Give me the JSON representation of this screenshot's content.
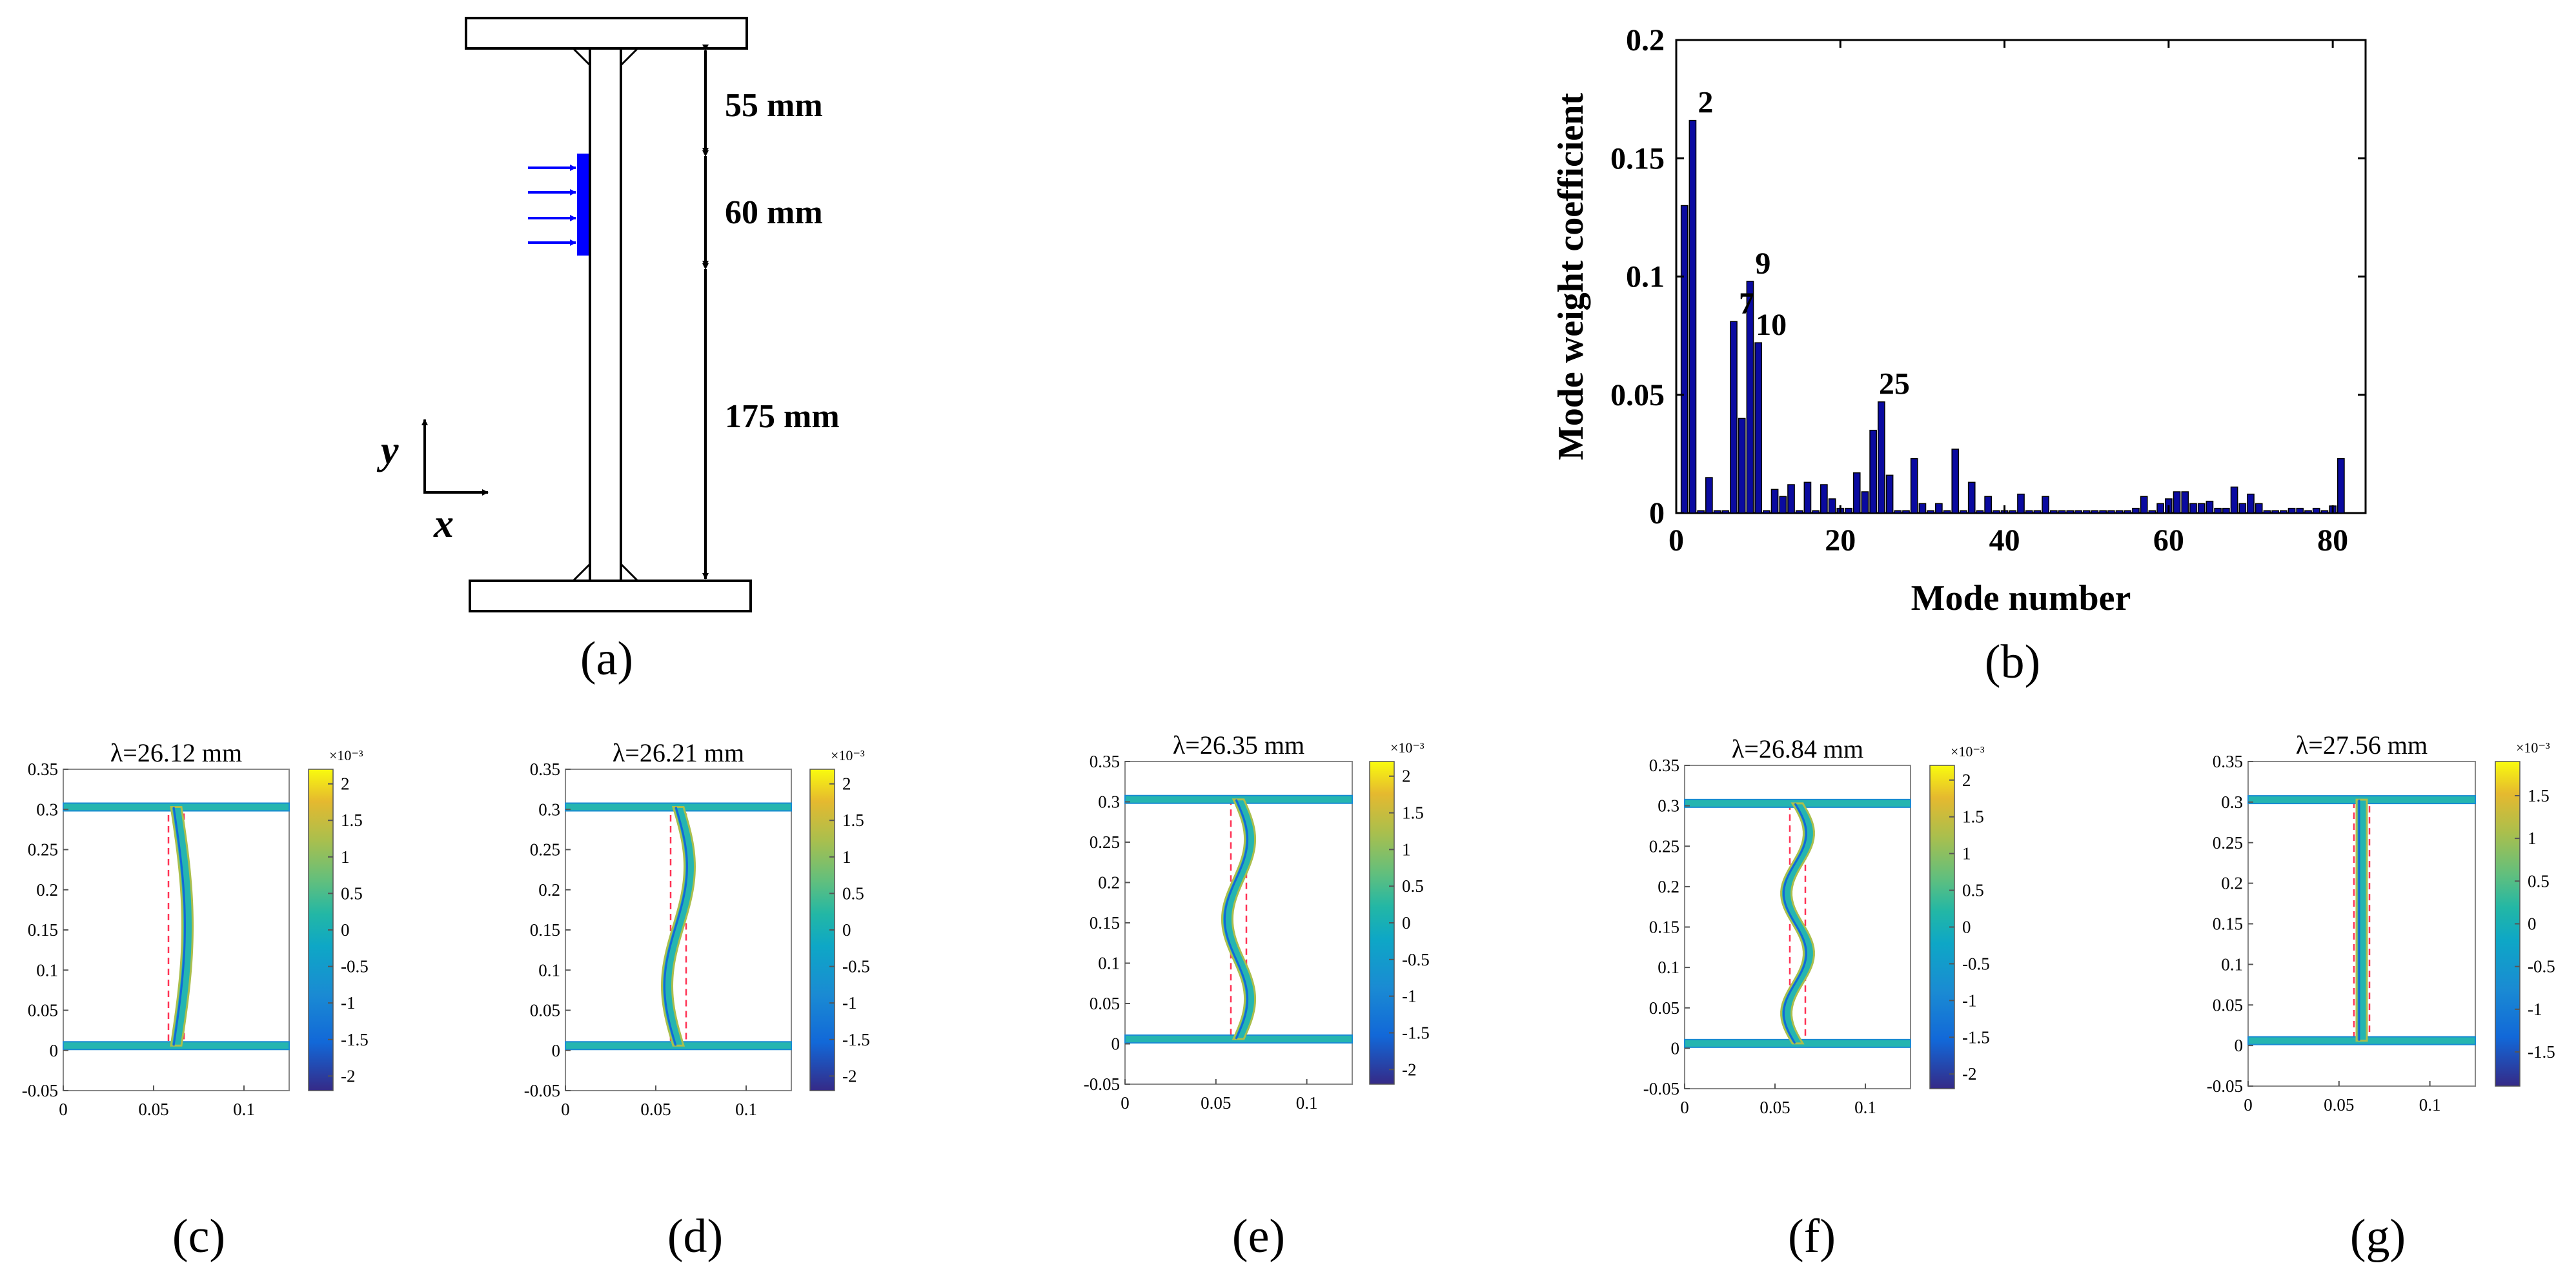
{
  "panel_labels": {
    "a": "(a)",
    "b": "(b)",
    "c": "(c)",
    "d": "(d)",
    "e": "(e)",
    "f": "(f)",
    "g": "(g)"
  },
  "schematic": {
    "dims": {
      "d1": "55 mm",
      "d2": "60 mm",
      "d3": "175 mm"
    },
    "axes": {
      "y": "y",
      "x": "x"
    },
    "load_color": "#0000ff"
  },
  "chart_data": [
    {
      "id": "b",
      "type": "bar",
      "xlabel": "Mode number",
      "ylabel": "Mode weight coefficient",
      "xlim": [
        0,
        84
      ],
      "ylim": [
        0,
        0.2
      ],
      "xticks": [
        0,
        20,
        40,
        60,
        80
      ],
      "yticks": [
        0,
        0.05,
        0.1,
        0.15,
        0.2
      ],
      "ytick_labels": [
        "0",
        "0.05",
        "0.1",
        "0.15",
        "0.2"
      ],
      "bar_color": "#0a0aa0",
      "x": [
        1,
        2,
        3,
        4,
        5,
        6,
        7,
        8,
        9,
        10,
        11,
        12,
        13,
        14,
        15,
        16,
        17,
        18,
        19,
        20,
        21,
        22,
        23,
        24,
        25,
        26,
        27,
        28,
        29,
        30,
        31,
        32,
        33,
        34,
        35,
        36,
        37,
        38,
        39,
        40,
        41,
        42,
        43,
        44,
        45,
        46,
        47,
        48,
        49,
        50,
        51,
        52,
        53,
        54,
        55,
        56,
        57,
        58,
        59,
        60,
        61,
        62,
        63,
        64,
        65,
        66,
        67,
        68,
        69,
        70,
        71,
        72,
        73,
        74,
        75,
        76,
        77,
        78,
        79,
        80,
        81
      ],
      "values": [
        0.13,
        0.166,
        0.001,
        0.015,
        0.001,
        0.001,
        0.081,
        0.04,
        0.098,
        0.072,
        0.001,
        0.01,
        0.007,
        0.012,
        0.001,
        0.013,
        0.001,
        0.012,
        0.006,
        0.002,
        0.002,
        0.017,
        0.009,
        0.035,
        0.047,
        0.016,
        0.001,
        0.001,
        0.023,
        0.004,
        0.001,
        0.004,
        0.001,
        0.027,
        0.001,
        0.013,
        0.001,
        0.007,
        0.001,
        0.001,
        0.001,
        0.008,
        0.001,
        0.001,
        0.007,
        0.001,
        0.001,
        0.001,
        0.001,
        0.001,
        0.001,
        0.001,
        0.001,
        0.001,
        0.001,
        0.002,
        0.007,
        0.001,
        0.004,
        0.006,
        0.009,
        0.009,
        0.004,
        0.004,
        0.005,
        0.002,
        0.002,
        0.011,
        0.004,
        0.008,
        0.004,
        0.001,
        0.001,
        0.001,
        0.002,
        0.002,
        0.001,
        0.002,
        0.001,
        0.003,
        0.023
      ],
      "annotations": [
        {
          "text": "2",
          "x": 2,
          "y": 0.166
        },
        {
          "text": "7",
          "x": 7,
          "y": 0.081
        },
        {
          "text": "9",
          "x": 9,
          "y": 0.098
        },
        {
          "text": "10",
          "x": 10,
          "y": 0.072
        },
        {
          "text": "25",
          "x": 25,
          "y": 0.047
        }
      ]
    },
    {
      "id": "c",
      "type": "heatmap",
      "title": "λ=26.12 mm",
      "waves": 0.5,
      "xlim": [
        0,
        0.125
      ],
      "ylim": [
        -0.05,
        0.35
      ],
      "xticks": [
        0,
        0.05,
        0.1
      ],
      "xtick_labels": [
        "0",
        "0.05",
        "0.1"
      ],
      "yticks": [
        -0.05,
        0,
        0.05,
        0.1,
        0.15,
        0.2,
        0.25,
        0.3,
        0.35
      ],
      "ytick_labels": [
        "-0.05",
        "0",
        "0.05",
        "0.1",
        "0.15",
        "0.2",
        "0.25",
        "0.3",
        "0.35"
      ],
      "colorbar": {
        "exponent": "×10⁻³",
        "min": -2.2,
        "max": 2.2,
        "ticks": [
          2,
          1.5,
          1,
          0.5,
          0,
          -0.5,
          -1,
          -1.5,
          -2
        ],
        "tick_labels": [
          "2",
          "1.5",
          "1",
          "0.5",
          "0",
          "-0.5",
          "-1",
          "-1.5",
          "-2"
        ]
      }
    },
    {
      "id": "d",
      "type": "heatmap",
      "title": "λ=26.21 mm",
      "waves": 1,
      "xlim": [
        0,
        0.125
      ],
      "ylim": [
        -0.05,
        0.35
      ],
      "xticks": [
        0,
        0.05,
        0.1
      ],
      "xtick_labels": [
        "0",
        "0.05",
        "0.1"
      ],
      "yticks": [
        -0.05,
        0,
        0.05,
        0.1,
        0.15,
        0.2,
        0.25,
        0.3,
        0.35
      ],
      "ytick_labels": [
        "-0.05",
        "0",
        "0.05",
        "0.1",
        "0.15",
        "0.2",
        "0.25",
        "0.3",
        "0.35"
      ],
      "colorbar": {
        "exponent": "×10⁻³",
        "min": -2.2,
        "max": 2.2,
        "ticks": [
          2,
          1.5,
          1,
          0.5,
          0,
          -0.5,
          -1,
          -1.5,
          -2
        ],
        "tick_labels": [
          "2",
          "1.5",
          "1",
          "0.5",
          "0",
          "-0.5",
          "-1",
          "-1.5",
          "-2"
        ]
      }
    },
    {
      "id": "e",
      "type": "heatmap",
      "title": "λ=26.35 mm",
      "waves": 1.5,
      "xlim": [
        0,
        0.125
      ],
      "ylim": [
        -0.05,
        0.35
      ],
      "xticks": [
        0,
        0.05,
        0.1
      ],
      "xtick_labels": [
        "0",
        "0.05",
        "0.1"
      ],
      "yticks": [
        -0.05,
        0,
        0.05,
        0.1,
        0.15,
        0.2,
        0.25,
        0.3,
        0.35
      ],
      "ytick_labels": [
        "-0.05",
        "0",
        "0.05",
        "0.1",
        "0.15",
        "0.2",
        "0.25",
        "0.3",
        "0.35"
      ],
      "colorbar": {
        "exponent": "×10⁻³",
        "min": -2.2,
        "max": 2.2,
        "ticks": [
          2,
          1.5,
          1,
          0.5,
          0,
          -0.5,
          -1,
          -1.5,
          -2
        ],
        "tick_labels": [
          "2",
          "1.5",
          "1",
          "0.5",
          "0",
          "-0.5",
          "-1",
          "-1.5",
          "-2"
        ]
      }
    },
    {
      "id": "f",
      "type": "heatmap",
      "title": "λ=26.84 mm",
      "waves": 2,
      "xlim": [
        0,
        0.125
      ],
      "ylim": [
        -0.05,
        0.35
      ],
      "xticks": [
        0,
        0.05,
        0.1
      ],
      "xtick_labels": [
        "0",
        "0.05",
        "0.1"
      ],
      "yticks": [
        -0.05,
        0,
        0.05,
        0.1,
        0.15,
        0.2,
        0.25,
        0.3,
        0.35
      ],
      "ytick_labels": [
        "-0.05",
        "0",
        "0.05",
        "0.1",
        "0.15",
        "0.2",
        "0.25",
        "0.3",
        "0.35"
      ],
      "colorbar": {
        "exponent": "×10⁻³",
        "min": -2.2,
        "max": 2.2,
        "ticks": [
          2,
          1.5,
          1,
          0.5,
          0,
          -0.5,
          -1,
          -1.5,
          -2
        ],
        "tick_labels": [
          "2",
          "1.5",
          "1",
          "0.5",
          "0",
          "-0.5",
          "-1",
          "-1.5",
          "-2"
        ]
      }
    },
    {
      "id": "g",
      "type": "heatmap",
      "title": "λ=27.56 mm",
      "waves": 0,
      "xlim": [
        0,
        0.125
      ],
      "ylim": [
        -0.05,
        0.35
      ],
      "xticks": [
        0,
        0.05,
        0.1
      ],
      "xtick_labels": [
        "0",
        "0.05",
        "0.1"
      ],
      "yticks": [
        -0.05,
        0,
        0.05,
        0.1,
        0.15,
        0.2,
        0.25,
        0.3,
        0.35
      ],
      "ytick_labels": [
        "-0.05",
        "0",
        "0.05",
        "0.1",
        "0.15",
        "0.2",
        "0.25",
        "0.3",
        "0.35"
      ],
      "colorbar": {
        "exponent": "×10⁻³",
        "min": -1.9,
        "max": 1.9,
        "ticks": [
          1.5,
          1,
          0.5,
          0,
          -0.5,
          -1,
          -1.5
        ],
        "tick_labels": [
          "1.5",
          "1",
          "0.5",
          "0",
          "-0.5",
          "-1",
          "-1.5"
        ]
      }
    }
  ]
}
